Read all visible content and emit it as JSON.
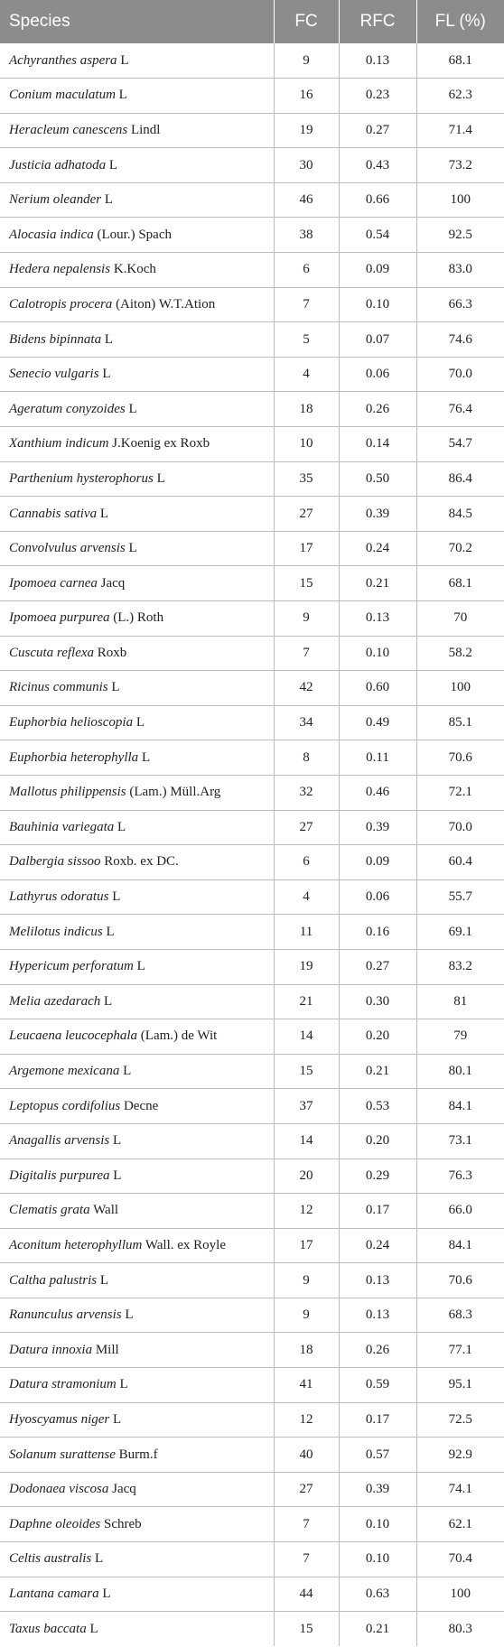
{
  "headers": [
    "Species",
    "FC",
    "RFC",
    "FL (%)"
  ],
  "rows": [
    {
      "name": "Achyranthes aspera",
      "author": "L",
      "fc": "9",
      "rfc": "0.13",
      "fl": "68.1"
    },
    {
      "name": "Conium maculatum",
      "author": "L",
      "fc": "16",
      "rfc": "0.23",
      "fl": "62.3"
    },
    {
      "name": "Heracleum canescens",
      "author": "Lindl",
      "fc": "19",
      "rfc": "0.27",
      "fl": "71.4"
    },
    {
      "name": "Justicia adhatoda",
      "author": "L",
      "fc": "30",
      "rfc": "0.43",
      "fl": "73.2"
    },
    {
      "name": "Nerium oleander",
      "author": "L",
      "fc": "46",
      "rfc": "0.66",
      "fl": "100"
    },
    {
      "name": "Alocasia indica",
      "author": "(Lour.) Spach",
      "fc": "38",
      "rfc": "0.54",
      "fl": "92.5"
    },
    {
      "name": "Hedera nepalensis",
      "author": "K.Koch",
      "fc": "6",
      "rfc": "0.09",
      "fl": "83.0"
    },
    {
      "name": "Calotropis procera",
      "author": "(Aiton) W.T.Ation",
      "fc": "7",
      "rfc": "0.10",
      "fl": "66.3"
    },
    {
      "name": "Bidens bipinnata",
      "author": "L",
      "fc": "5",
      "rfc": "0.07",
      "fl": "74.6"
    },
    {
      "name": "Senecio vulgaris",
      "author": "L",
      "fc": "4",
      "rfc": "0.06",
      "fl": "70.0"
    },
    {
      "name": "Ageratum conyzoides",
      "author": "L",
      "fc": "18",
      "rfc": "0.26",
      "fl": "76.4"
    },
    {
      "name": "Xanthium indicum",
      "author": "J.Koenig ex Roxb",
      "fc": "10",
      "rfc": "0.14",
      "fl": "54.7"
    },
    {
      "name": "Parthenium hysterophorus",
      "author": "L",
      "fc": "35",
      "rfc": "0.50",
      "fl": "86.4"
    },
    {
      "name": "Cannabis sativa",
      "author": "L",
      "fc": "27",
      "rfc": "0.39",
      "fl": "84.5"
    },
    {
      "name": "Convolvulus arvensis",
      "author": "L",
      "fc": "17",
      "rfc": "0.24",
      "fl": "70.2"
    },
    {
      "name": "Ipomoea carnea",
      "author": "Jacq",
      "fc": "15",
      "rfc": "0.21",
      "fl": "68.1"
    },
    {
      "name": "Ipomoea purpurea",
      "author": "(L.) Roth",
      "fc": "9",
      "rfc": "0.13",
      "fl": "70"
    },
    {
      "name": "Cuscuta reflexa",
      "author": "Roxb",
      "fc": "7",
      "rfc": "0.10",
      "fl": "58.2"
    },
    {
      "name": "Ricinus communis",
      "author": "L",
      "fc": "42",
      "rfc": "0.60",
      "fl": "100"
    },
    {
      "name": "Euphorbia helioscopia",
      "author": "L",
      "fc": "34",
      "rfc": "0.49",
      "fl": "85.1"
    },
    {
      "name": "Euphorbia heterophylla",
      "author": "L",
      "fc": "8",
      "rfc": "0.11",
      "fl": "70.6"
    },
    {
      "name": "Mallotus philippensis",
      "author": "(Lam.) Müll.Arg",
      "fc": "32",
      "rfc": "0.46",
      "fl": "72.1"
    },
    {
      "name": "Bauhinia variegata",
      "author": "L",
      "fc": "27",
      "rfc": "0.39",
      "fl": "70.0"
    },
    {
      "name": "Dalbergia sissoo",
      "author": "Roxb. ex DC.",
      "fc": "6",
      "rfc": "0.09",
      "fl": "60.4"
    },
    {
      "name": "Lathyrus odoratus",
      "author": "L",
      "fc": "4",
      "rfc": "0.06",
      "fl": "55.7"
    },
    {
      "name": "Melilotus indicus",
      "author": "L",
      "fc": "11",
      "rfc": "0.16",
      "fl": "69.1"
    },
    {
      "name": "Hypericum perforatum",
      "author": "L",
      "fc": "19",
      "rfc": "0.27",
      "fl": "83.2"
    },
    {
      "name": "Melia azedarach",
      "author": "L",
      "fc": "21",
      "rfc": "0.30",
      "fl": "81"
    },
    {
      "name": "Leucaena leucocephala",
      "author": "(Lam.) de Wit",
      "fc": "14",
      "rfc": "0.20",
      "fl": "79"
    },
    {
      "name": "Argemone mexicana",
      "author": "L",
      "fc": "15",
      "rfc": "0.21",
      "fl": "80.1"
    },
    {
      "name": "Leptopus cordifolius",
      "author": "Decne",
      "fc": "37",
      "rfc": "0.53",
      "fl": "84.1"
    },
    {
      "name": "Anagallis arvensis",
      "author": "L",
      "fc": "14",
      "rfc": "0.20",
      "fl": "73.1"
    },
    {
      "name": "Digitalis purpurea",
      "author": "L",
      "fc": "20",
      "rfc": "0.29",
      "fl": "76.3"
    },
    {
      "name": "Clematis grata",
      "author": "Wall",
      "fc": "12",
      "rfc": "0.17",
      "fl": "66.0"
    },
    {
      "name": "Aconitum heterophyllum",
      "author": "Wall. ex Royle",
      "fc": "17",
      "rfc": "0.24",
      "fl": "84.1"
    },
    {
      "name": "Caltha palustris",
      "author": "L",
      "fc": "9",
      "rfc": "0.13",
      "fl": "70.6"
    },
    {
      "name": "Ranunculus arvensis",
      "author": "L",
      "fc": "9",
      "rfc": "0.13",
      "fl": "68.3"
    },
    {
      "name": "Datura innoxia",
      "author": "Mill",
      "fc": "18",
      "rfc": "0.26",
      "fl": "77.1"
    },
    {
      "name": "Datura stramonium",
      "author": "L",
      "fc": "41",
      "rfc": "0.59",
      "fl": "95.1"
    },
    {
      "name": "Hyoscyamus niger",
      "author": "L",
      "fc": "12",
      "rfc": "0.17",
      "fl": "72.5"
    },
    {
      "name": "Solanum surattense",
      "author": "Burm.f",
      "fc": "40",
      "rfc": "0.57",
      "fl": "92.9"
    },
    {
      "name": "Dodonaea viscosa",
      "author": "Jacq",
      "fc": "27",
      "rfc": "0.39",
      "fl": "74.1"
    },
    {
      "name": "Daphne oleoides",
      "author": "Schreb",
      "fc": "7",
      "rfc": "0.10",
      "fl": "62.1"
    },
    {
      "name": "Celtis australis",
      "author": "L",
      "fc": "7",
      "rfc": "0.10",
      "fl": "70.4"
    },
    {
      "name": "Lantana camara",
      "author": "L",
      "fc": "44",
      "rfc": "0.63",
      "fl": "100"
    },
    {
      "name": "Taxus baccata",
      "author": "L",
      "fc": "15",
      "rfc": "0.21",
      "fl": "80.3"
    }
  ],
  "colors": {
    "header_bg": "#8c8c8c",
    "header_text": "#ffffff",
    "rule": "#bdbdbd",
    "text": "#222222"
  }
}
